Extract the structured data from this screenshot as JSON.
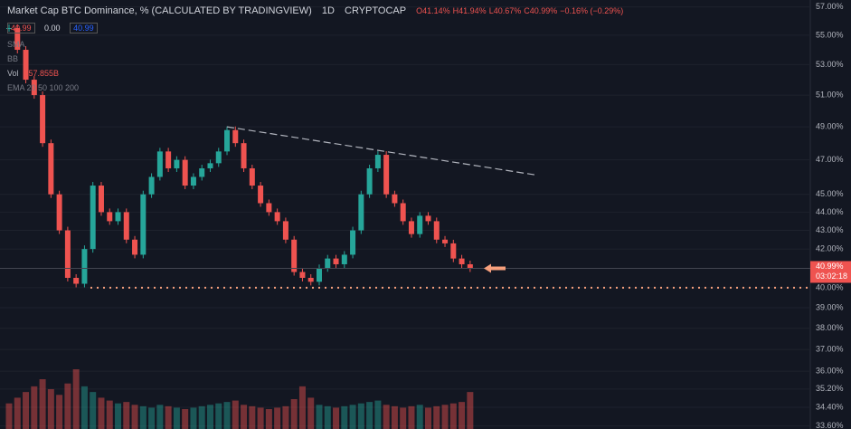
{
  "chart_data": {
    "type": "candle-line",
    "title": "Market Cap BTC Dominance, % (CALCULATED BY TRADINGVIEW)",
    "interval": "1D",
    "exchange": "CRYPTOCAP",
    "ohlc": [
      "O41.14%",
      "H41.94%",
      "L40.67%",
      "C40.99%",
      "−0.16% (−0.29%)"
    ],
    "quote": [
      "40.99",
      "0.00",
      "40.99"
    ],
    "indicators": [
      "SMA",
      "BB",
      "Vol",
      "EMA 20 50 100 200"
    ],
    "volume_label": "257.855B",
    "log_scale": true,
    "ylim": [
      33.47,
      57.5
    ],
    "yticks": [
      {
        "value": 57,
        "label": "57.00%"
      },
      {
        "value": 55,
        "label": "55.00%"
      },
      {
        "value": 53,
        "label": "53.00%"
      },
      {
        "value": 51,
        "label": "51.00%"
      },
      {
        "value": 49,
        "label": "49.00%"
      },
      {
        "value": 47,
        "label": "47.00%"
      },
      {
        "value": 45,
        "label": "45.00%"
      },
      {
        "value": 44,
        "label": "44.00%"
      },
      {
        "value": 43,
        "label": "43.00%"
      },
      {
        "value": 42,
        "label": "42.00%"
      },
      {
        "value": 40,
        "label": "40.00%"
      },
      {
        "value": 39,
        "label": "39.00%"
      },
      {
        "value": 38,
        "label": "38.00%"
      },
      {
        "value": 37,
        "label": "37.00%"
      },
      {
        "value": 36,
        "label": "36.00%"
      },
      {
        "value": 35.2,
        "label": "35.20%"
      },
      {
        "value": 34.4,
        "label": "34.40%"
      },
      {
        "value": 33.6,
        "label": "33.60%"
      }
    ],
    "values": [
      55.5,
      54,
      52,
      51,
      48,
      45,
      43,
      40.5,
      40.2,
      42,
      45.5,
      44,
      43.5,
      44,
      42.5,
      41.7,
      45,
      46,
      47.5,
      46.5,
      47,
      45.5,
      46,
      46.5,
      46.8,
      47.5,
      48.8,
      48,
      46.5,
      45.5,
      44.5,
      44,
      43.5,
      42.5,
      40.8,
      40.5,
      40.3,
      41,
      41.5,
      41.2,
      41.7,
      43,
      45,
      46.5,
      47.3,
      45,
      44.5,
      43.5,
      42.8,
      43.8,
      43.5,
      42.5,
      42.3,
      41.5,
      41.2,
      40.99
    ],
    "volume": [
      180,
      220,
      260,
      300,
      350,
      280,
      240,
      320,
      420,
      300,
      260,
      220,
      200,
      180,
      190,
      170,
      160,
      150,
      170,
      160,
      150,
      140,
      150,
      160,
      170,
      180,
      190,
      200,
      170,
      160,
      150,
      140,
      150,
      160,
      210,
      300,
      220,
      170,
      160,
      150,
      160,
      170,
      180,
      190,
      200,
      170,
      160,
      150,
      160,
      170,
      150,
      160,
      170,
      180,
      190,
      260
    ],
    "volume_lim": [
      0,
      700
    ],
    "up_color": "#26a69a",
    "down_color": "#ef5350",
    "trendline": {
      "start": [
        26,
        49.0
      ],
      "end": [
        63,
        46.1
      ]
    },
    "support": 40.0,
    "price_tag": {
      "value": 40.99,
      "label": "40.99%",
      "countdown": "03:02:18"
    }
  }
}
